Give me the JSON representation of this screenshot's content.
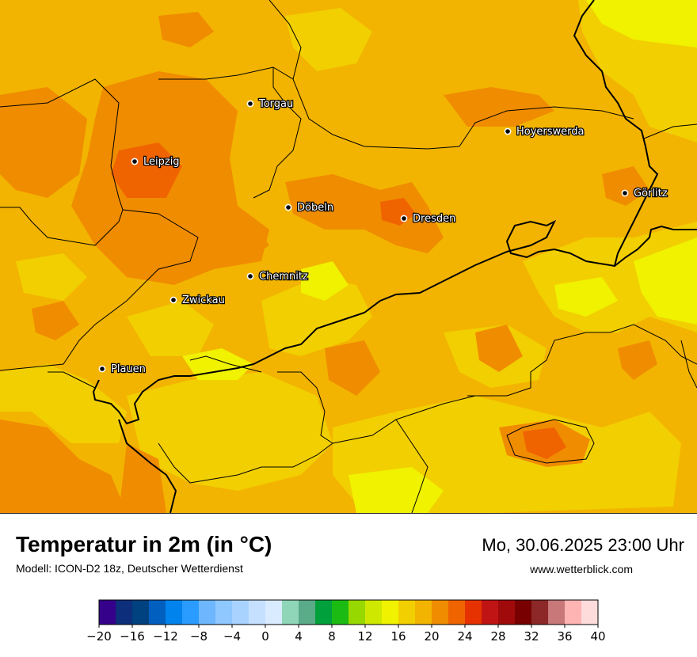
{
  "header": {
    "title": "Temperatur in 2m (in °C)",
    "model": "Modell: ICON-D2 18z, Deutscher Wetterdienst",
    "datetime": "Mo, 30.06.2025 23:00 Uhr",
    "website": "www.wetterblick.com"
  },
  "cities": [
    {
      "name": "Torgau"
    },
    {
      "name": "Hoyerswerda"
    },
    {
      "name": "Leipzig"
    },
    {
      "name": "Döbeln"
    },
    {
      "name": "Dresden"
    },
    {
      "name": "Görlitz"
    },
    {
      "name": "Chemnitz"
    },
    {
      "name": "Zwickau"
    },
    {
      "name": "Plauen"
    }
  ],
  "legend": {
    "colors": [
      "#35008a",
      "#0d2e7a",
      "#00417f",
      "#005fbf",
      "#0083ec",
      "#2a9bff",
      "#6eb7ff",
      "#8fc7ff",
      "#a9d3ff",
      "#c5e0ff",
      "#d9ebff",
      "#8fd6b8",
      "#5aab87",
      "#00a03c",
      "#1cbb14",
      "#96d800",
      "#cfe800",
      "#f0f200",
      "#f2cf00",
      "#f2b400",
      "#f08c00",
      "#f06400",
      "#e63200",
      "#c01414",
      "#a00a0a",
      "#780000",
      "#8c2828",
      "#c87878",
      "#ffb4b4",
      "#ffdcdc"
    ],
    "ticks": [
      "−20",
      "−16",
      "−12",
      "−8",
      "−4",
      "0",
      "4",
      "8",
      "12",
      "16",
      "20",
      "24",
      "28",
      "32",
      "36",
      "40"
    ]
  },
  "map_colors": {
    "base": "#f2b400",
    "warm": "#f08c00",
    "hot": "#f06400",
    "cool": "#f2cf00",
    "cooler": "#f0f200"
  }
}
